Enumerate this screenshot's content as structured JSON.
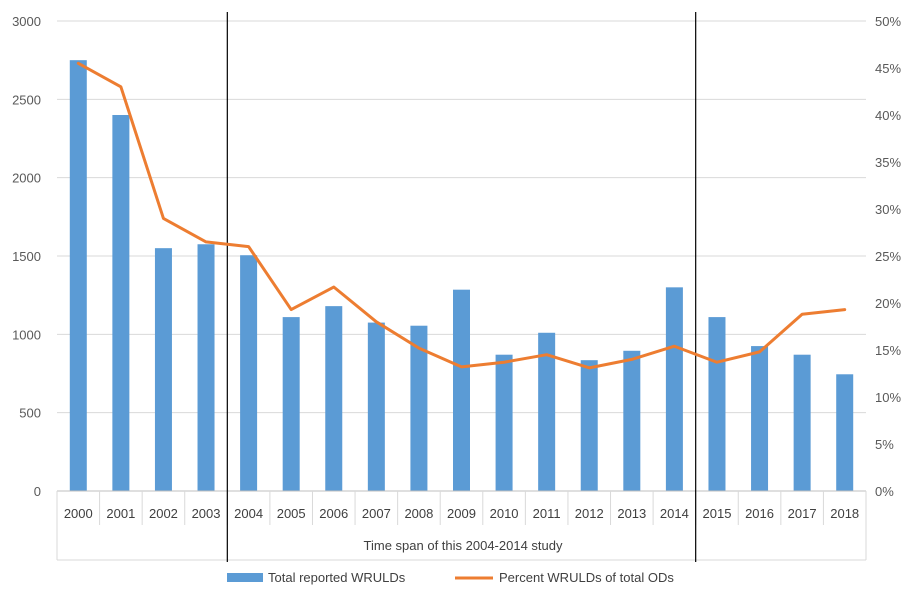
{
  "chart_data": {
    "type": "bar+line",
    "categories": [
      "2000",
      "2001",
      "2002",
      "2003",
      "2004",
      "2005",
      "2006",
      "2007",
      "2008",
      "2009",
      "2010",
      "2011",
      "2012",
      "2013",
      "2014",
      "2015",
      "2016",
      "2017",
      "2018"
    ],
    "series": [
      {
        "name": "Total reported WRULDs",
        "type": "bar",
        "axis": "left",
        "color": "#5B9BD5",
        "values": [
          2750,
          2400,
          1550,
          1575,
          1505,
          1110,
          1180,
          1075,
          1055,
          1285,
          870,
          1010,
          835,
          895,
          1300,
          1110,
          925,
          870,
          745
        ]
      },
      {
        "name": "Percent WRULDs of total ODs",
        "type": "line",
        "axis": "right",
        "color": "#ED7D31",
        "values": [
          45.5,
          43,
          29,
          26.5,
          26,
          19.3,
          21.7,
          18,
          15.2,
          13.2,
          13.7,
          14.5,
          13.1,
          14,
          15.4,
          13.7,
          14.8,
          18.8,
          19.3
        ]
      }
    ],
    "left_axis": {
      "ylim": [
        0,
        3000
      ],
      "ticks": [
        "0",
        "500",
        "1000",
        "1500",
        "2000",
        "2500",
        "3000"
      ]
    },
    "right_axis": {
      "ylim": [
        0,
        50
      ],
      "ticks": [
        "0%",
        "5%",
        "10%",
        "15%",
        "20%",
        "25%",
        "30%",
        "35%",
        "40%",
        "45%",
        "50%"
      ]
    },
    "grid": true,
    "legend_position": "bottom",
    "annotation": {
      "label": "Time span of this 2004-2014 study",
      "start_category": "2004",
      "end_category": "2014"
    }
  }
}
